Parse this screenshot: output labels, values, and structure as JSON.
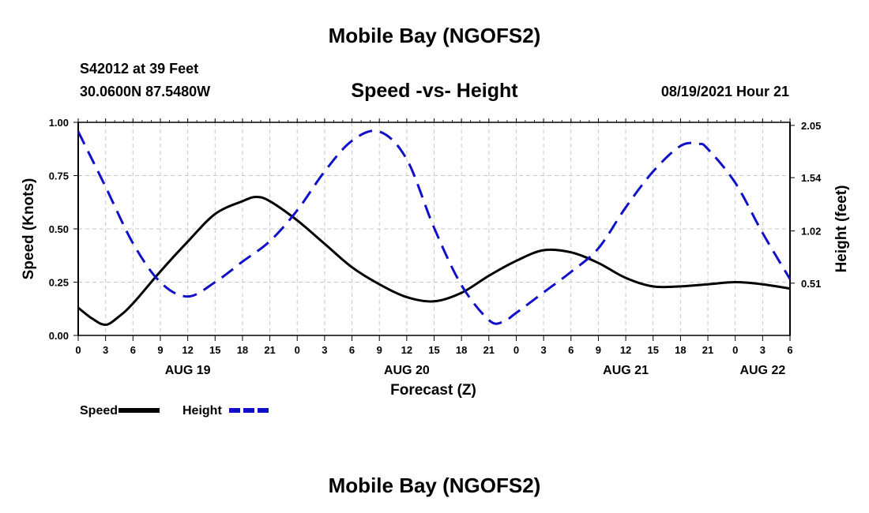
{
  "header": {
    "title": "Mobile Bay (NGOFS2)",
    "station": "S42012 at 39 Feet",
    "coords": "30.0600N  87.5480W",
    "subtitle": "Speed -vs- Height",
    "datetime": "08/19/2021 Hour 21"
  },
  "footer": {
    "title": "Mobile Bay (NGOFS2)"
  },
  "chart_data": {
    "type": "line",
    "title": "Speed -vs- Height",
    "xlabel": "Forecast (Z)",
    "ylabel": "Speed (Knots)",
    "y2label": "Height (feet)",
    "x_hours_range": [
      0,
      78
    ],
    "x_tick_step_hours": 3,
    "x_tick_labels": [
      "0",
      "3",
      "6",
      "9",
      "12",
      "15",
      "18",
      "21",
      "0",
      "3",
      "6",
      "9",
      "12",
      "15",
      "18",
      "21",
      "0",
      "3",
      "6",
      "9",
      "12",
      "15",
      "18",
      "21",
      "0",
      "3",
      "6"
    ],
    "day_labels": [
      {
        "hour": 12,
        "label": "AUG 19"
      },
      {
        "hour": 36,
        "label": "AUG 20"
      },
      {
        "hour": 60,
        "label": "AUG 21"
      },
      {
        "hour": 75,
        "label": "AUG 22"
      }
    ],
    "ylim": [
      0,
      1.0
    ],
    "y_ticks": [
      {
        "value": 0.0,
        "label": "0.00"
      },
      {
        "value": 0.25,
        "label": "0.25"
      },
      {
        "value": 0.5,
        "label": "0.50"
      },
      {
        "value": 0.75,
        "label": "0.75"
      },
      {
        "value": 1.0,
        "label": "1.00"
      }
    ],
    "y2lim": [
      0.0,
      2.08
    ],
    "y2_ticks": [
      {
        "value": 0.51,
        "label": "0.51"
      },
      {
        "value": 1.02,
        "label": "1.02"
      },
      {
        "value": 1.54,
        "label": "1.54"
      },
      {
        "value": 2.05,
        "label": "2.05"
      }
    ],
    "grid": true,
    "legend_position": "bottom-left",
    "series": [
      {
        "name": "Speed",
        "axis": "left",
        "color": "#000000",
        "style": "solid",
        "x": [
          0,
          1.5,
          3,
          4.5,
          6,
          9,
          12,
          15,
          18,
          19.5,
          21,
          24,
          27,
          30,
          33,
          36,
          39,
          42,
          45,
          48,
          51,
          54,
          57,
          60,
          63,
          66,
          69,
          72,
          75,
          78
        ],
        "values": [
          0.13,
          0.08,
          0.05,
          0.09,
          0.15,
          0.3,
          0.44,
          0.57,
          0.63,
          0.65,
          0.63,
          0.54,
          0.43,
          0.32,
          0.24,
          0.18,
          0.16,
          0.2,
          0.28,
          0.35,
          0.4,
          0.39,
          0.34,
          0.27,
          0.23,
          0.23,
          0.24,
          0.25,
          0.24,
          0.22
        ]
      },
      {
        "name": "Height",
        "axis": "right",
        "color": "#1010c8",
        "style": "dashed",
        "x": [
          0,
          3,
          6,
          9,
          12,
          15,
          18,
          21,
          24,
          27,
          30,
          33,
          36,
          39,
          42,
          45,
          46.5,
          48,
          51,
          54,
          57,
          60,
          63,
          66,
          68,
          69,
          72,
          75,
          78
        ],
        "values": [
          1.99,
          1.45,
          0.9,
          0.52,
          0.38,
          0.52,
          0.72,
          0.92,
          1.22,
          1.6,
          1.9,
          1.99,
          1.72,
          1.05,
          0.49,
          0.15,
          0.13,
          0.22,
          0.42,
          0.62,
          0.85,
          1.25,
          1.6,
          1.85,
          1.87,
          1.82,
          1.49,
          1.0,
          0.55
        ]
      }
    ]
  }
}
